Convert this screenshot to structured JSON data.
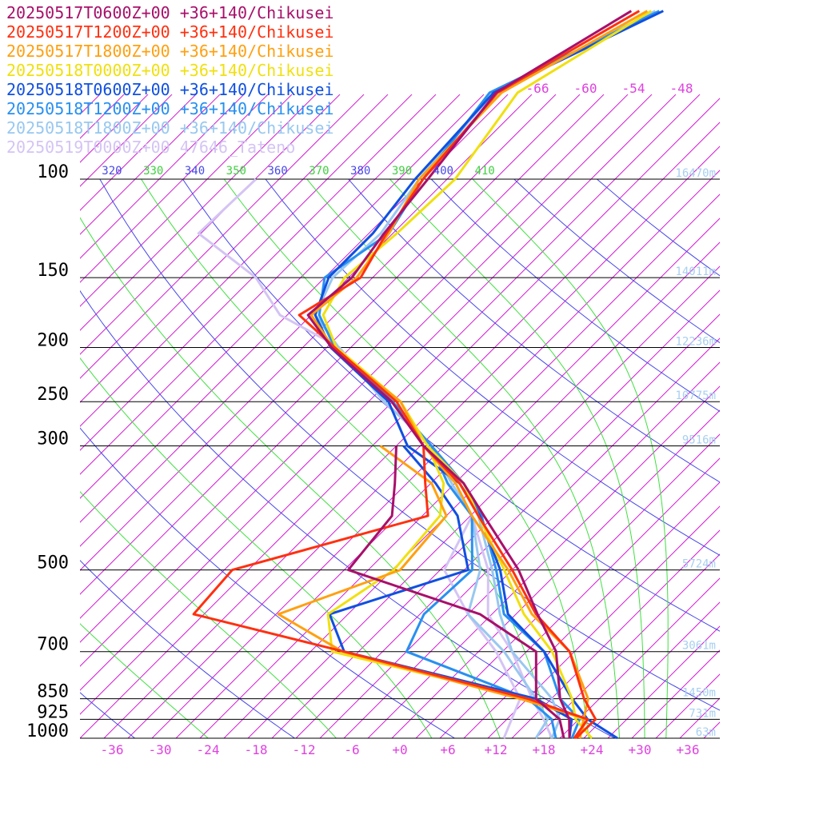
{
  "chart_data": {
    "type": "skewt",
    "legend_corner": "upper left",
    "xlim": [
      -40,
      40
    ],
    "xticks": [
      -36,
      -30,
      -24,
      -18,
      -12,
      -6,
      {
        "value": 0,
        "label": "+0"
      },
      {
        "value": 6,
        "label": "+6"
      },
      {
        "value": 12,
        "label": "+12"
      },
      {
        "value": 18,
        "label": "+18"
      },
      {
        "value": 24,
        "label": "+24"
      },
      {
        "value": 30,
        "label": "+30"
      },
      {
        "value": 36,
        "label": "+36"
      }
    ],
    "ylim": [
      1000,
      47.8
    ],
    "ylog": true,
    "yticks": [
      100,
      150,
      200,
      250,
      300,
      500,
      700,
      850,
      925,
      1000
    ],
    "height_labels": [
      "16470m",
      "14011m",
      "12236m",
      "10775m",
      "9516m",
      "5724m",
      "3061m",
      "1450m",
      "731m",
      "63m"
    ],
    "isotherm_labels": [
      -66,
      -60,
      -54,
      -48
    ],
    "dry_adiabat_labels": [
      320,
      340,
      360,
      380,
      400
    ],
    "moist_adiabat_labels": [
      330,
      350,
      370,
      390,
      410
    ],
    "pressure": [
      1000,
      925,
      850,
      700,
      600,
      500,
      400,
      350,
      300,
      250,
      200,
      175,
      150,
      125,
      100,
      70,
      50
    ],
    "series": [
      {
        "name": "20250517T0600Z+00 +36+140/Chikusei",
        "color": "#a8106a",
        "temperature": [
          21.2,
          18.8,
          15.1,
          8.7,
          1.7,
          -6.2,
          -17.3,
          -23.9,
          -33.6,
          -43.1,
          -57.4,
          -64.4,
          -63.6,
          -65.1,
          -66.4,
          -68.7,
          -62.0
        ],
        "dewpoint": [
          20.5,
          17.6,
          12.1,
          6.2,
          -5.5,
          -27.5,
          -28.8,
          -32.5,
          -37.0,
          null,
          null,
          null,
          null,
          null,
          null,
          null,
          null
        ]
      },
      {
        "name": "20250517T1200Z+00 +36+140/Chikusei",
        "color": "#ff3010",
        "temperature": [
          22.0,
          22.1,
          18.1,
          10.4,
          1.5,
          -7.0,
          -18.0,
          -24.4,
          -33.6,
          -42.5,
          -57.0,
          -65.5,
          -62.5,
          -64.8,
          -67.0,
          -68.5,
          -61.0
        ],
        "dewpoint": [
          21.8,
          21.1,
          11.1,
          -17.8,
          -41.3,
          -42.0,
          -24.3,
          -28.7,
          -33.6,
          null,
          null,
          null,
          null,
          null,
          null,
          null,
          null
        ]
      },
      {
        "name": "20250517T1800Z+00 +36+140/Chikusei",
        "color": "#ffa010",
        "temperature": [
          22.5,
          20.6,
          18.6,
          10.4,
          1.0,
          -7.5,
          -18.8,
          -24.9,
          -33.6,
          -42.0,
          -57.2,
          -64.0,
          -63.0,
          -64.5,
          -67.5,
          -68.0,
          -60.0
        ],
        "dewpoint": [
          22.0,
          21.1,
          10.1,
          -18.0,
          -30.7,
          -21.0,
          -22.0,
          -27.9,
          -39.0,
          null,
          null,
          null,
          null,
          null,
          null,
          null,
          null
        ]
      },
      {
        "name": "20250518T0000Z+00 +36+140/Chikusei",
        "color": "#f0e010",
        "temperature": [
          24.0,
          19.6,
          16.6,
          8.2,
          0.0,
          -8.0,
          -18.0,
          -23.9,
          -33.1,
          -42.0,
          -56.8,
          -62.5,
          -64.5,
          -63.5,
          -63.0,
          -66.0,
          -59.5
        ],
        "dewpoint": [
          22.5,
          20.6,
          11.1,
          -19.3,
          -24.5,
          -21.8,
          -22.8,
          -26.4,
          -33.1,
          null,
          null,
          null,
          null,
          null,
          null,
          null,
          null
        ]
      },
      {
        "name": "20250518T0600Z+00 +36+140/Chikusei",
        "color": "#1050e0",
        "temperature": [
          27.2,
          21.1,
          16.6,
          7.2,
          -2.0,
          -8.5,
          -17.8,
          -24.4,
          -35.6,
          -43.5,
          -57.5,
          -63.5,
          -66.5,
          -66.5,
          -68.0,
          -69.0,
          -58.0
        ],
        "dewpoint": [
          21.2,
          19.1,
          12.1,
          -17.8,
          -24.3,
          -12.5,
          -20.6,
          -27.4,
          -36.1,
          null,
          null,
          null,
          null,
          null,
          null,
          null,
          null
        ]
      },
      {
        "name": "20250518T1200Z+00 +36+140/Chikusei",
        "color": "#2890f0",
        "temperature": [
          21.5,
          20.1,
          15.1,
          7.2,
          -2.5,
          -9.0,
          -17.6,
          -23.9,
          -32.6,
          -43.0,
          -57.0,
          -63.0,
          -67.0,
          -64.5,
          -67.0,
          -69.5,
          -58.5
        ],
        "dewpoint": [
          19.5,
          16.6,
          11.1,
          -10.0,
          -12.5,
          -12.0,
          -18.8,
          -25.9,
          -32.6,
          null,
          null,
          null,
          null,
          null,
          null,
          null,
          null
        ]
      },
      {
        "name": "20250518T1800Z+00 +36+140/Chikusei",
        "color": "#98c8f0",
        "temperature": [
          19.0,
          17.6,
          14.1,
          3.2,
          -3.0,
          -9.5,
          -18.0,
          -24.4,
          -32.6,
          -44.0,
          -56.5,
          -63.5,
          -66.0,
          -65.5,
          -67.5,
          -69.0,
          -59.0
        ],
        "dewpoint": [
          17.0,
          16.1,
          12.1,
          2.2,
          -7.0,
          -11.0,
          -18.8,
          -25.4,
          -32.6,
          null,
          null,
          null,
          null,
          null,
          null,
          null,
          null
        ]
      },
      {
        "name": "20250519T0000Z+00 47646_Tateno",
        "color": "#d4c4f4",
        "temperature": [
          19.0,
          15.6,
          11.6,
          3.2,
          -4.5,
          -10.0,
          -18.8,
          -25.4,
          -32.6,
          -44.1,
          -56.4,
          -67.9,
          -75.6,
          -88.3,
          -87.9,
          null,
          null
        ],
        "dewpoint": [
          13.0,
          11.6,
          10.1,
          1.2,
          -7.0,
          -15.5,
          -18.8,
          -25.9,
          -32.6,
          null,
          null,
          null,
          null,
          null,
          null,
          null,
          null
        ]
      }
    ]
  }
}
